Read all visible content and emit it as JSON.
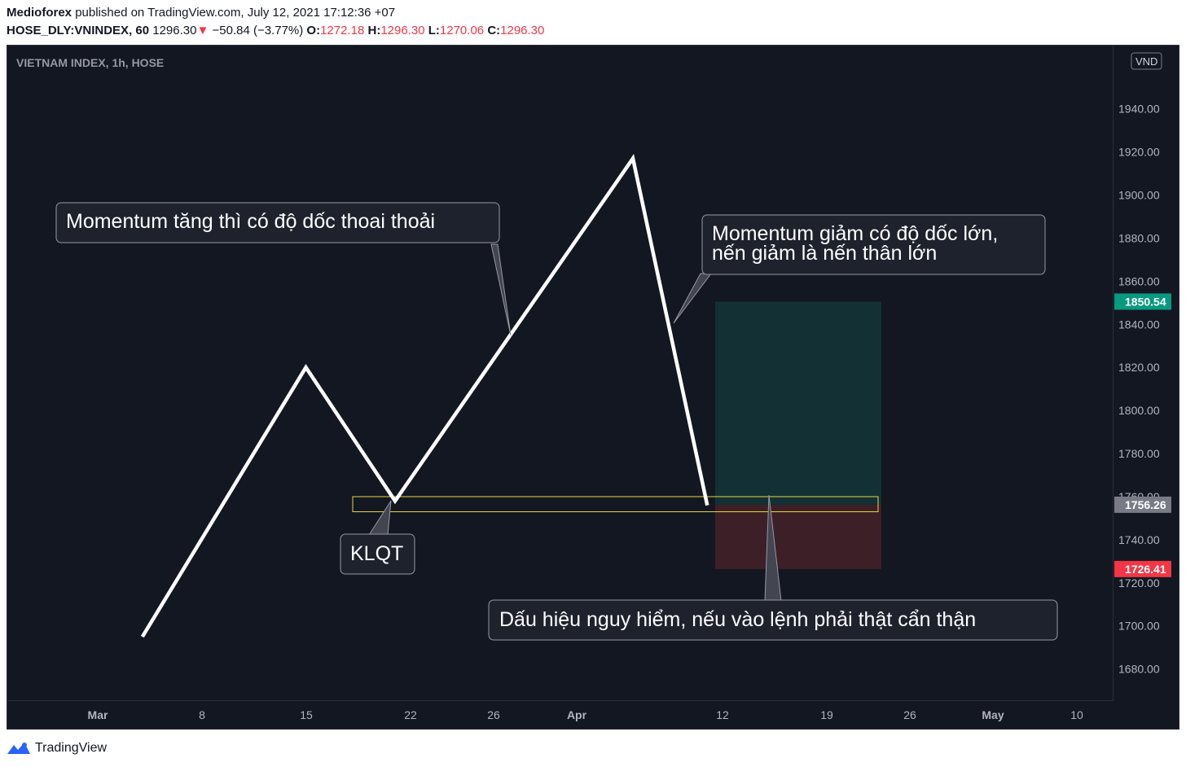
{
  "header": {
    "author": "Medioforex",
    "published_text": "published on TradingView.com, July 12, 2021 17:12:36 +07",
    "symbol": "HOSE_DLY:VNINDEX, 60",
    "last": "1296.30",
    "change_arrow": "▼",
    "change": "−50.84 (−3.77%)",
    "o_label": "O:",
    "o_value": "1272.18",
    "h_label": "H:",
    "h_value": "1296.30",
    "l_label": "L:",
    "l_value": "1270.06",
    "c_label": "C:",
    "c_value": "1296.30"
  },
  "chart_title": "VIETNAM INDEX, 1h, HOSE",
  "currency_badge": "VND",
  "footer": {
    "brand": "TradingView",
    "logo_icon": "tradingview-logo-icon"
  },
  "colors": {
    "background": "#131722",
    "price_line": "#ffffff",
    "target_zone": "#133137",
    "stop_zone": "#3f2128",
    "target_badge": "#089981",
    "stop_badge": "#f23645",
    "current_badge": "#787b86",
    "klqt_zone": "#ffeb3b"
  },
  "annotations": {
    "momentum_up": "Momentum tăng thì có độ dốc thoai thoải",
    "momentum_down_1": "Momentum giảm có độ dốc lớn,",
    "momentum_down_2": "nến giảm là nến thân lớn",
    "klqt": "KLQT",
    "danger": "Dấu hiệu nguy hiểm, nếu vào lệnh phải thật cẩn thận"
  },
  "chart_data": {
    "type": "line",
    "title": "VIETNAM INDEX, 1h, HOSE",
    "currency": "VND",
    "x_ticks": [
      "Mar",
      "8",
      "15",
      "22",
      "26",
      "Apr",
      "12",
      "19",
      "26",
      "May",
      "10"
    ],
    "y_ticks": [
      "1940.00",
      "1920.00",
      "1900.00",
      "1880.00",
      "1860.00",
      "1840.00",
      "1820.00",
      "1800.00",
      "1780.00",
      "1760.00",
      "1740.00",
      "1720.00",
      "1700.00",
      "1680.00"
    ],
    "ylim": [
      1664,
      1963
    ],
    "series": [
      {
        "x": [
          "2021-03-04",
          "2021-03-15",
          "2021-03-21",
          "2021-04-06",
          "2021-04-11"
        ],
        "values": [
          1695,
          1820,
          1758,
          1917,
          1756
        ]
      }
    ],
    "zones": {
      "klqt_range": [
        1753,
        1760
      ],
      "target_price": "1850.54",
      "entry_price": "1756.26",
      "stop_price": "1726.41",
      "position_x": [
        "2021-04-11",
        "2021-04-22"
      ]
    }
  }
}
